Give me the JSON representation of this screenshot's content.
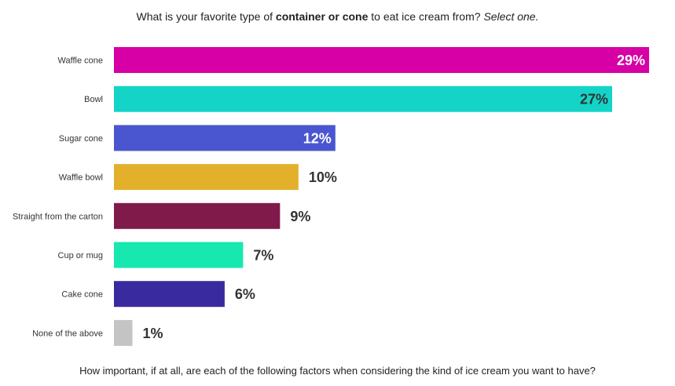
{
  "title": {
    "part1": "What is your favorite type of ",
    "part2": "container or cone",
    "part3": " to eat ice cream from? ",
    "part4": "Select one."
  },
  "footer": "How important, if at all, are each of the following factors when considering the kind of ice cream you want to have?",
  "chart_data": {
    "type": "bar",
    "orientation": "horizontal",
    "categories": [
      "Waffle cone",
      "Bowl",
      "Sugar cone",
      "Waffle bowl",
      "Straight from the carton",
      "Cup or mug",
      "Cake cone",
      "None of the above"
    ],
    "values": [
      29,
      27,
      12,
      10,
      9,
      7,
      6,
      1
    ],
    "value_labels": [
      "29%",
      "27%",
      "12%",
      "10%",
      "9%",
      "7%",
      "6%",
      "1%"
    ],
    "colors": [
      "#d600a6",
      "#14d4c8",
      "#4a56d0",
      "#e2b02a",
      "#7f1a4b",
      "#16e8b0",
      "#3a2aa0",
      "#c4c4c4"
    ],
    "label_colors": [
      "#ffffff",
      "#333333",
      "#ffffff",
      "#333333",
      "#333333",
      "#333333",
      "#333333",
      "#333333"
    ],
    "label_inside": [
      true,
      true,
      true,
      false,
      false,
      false,
      false,
      false
    ],
    "xlim": [
      0,
      29
    ],
    "grid": false,
    "legend": "none"
  }
}
